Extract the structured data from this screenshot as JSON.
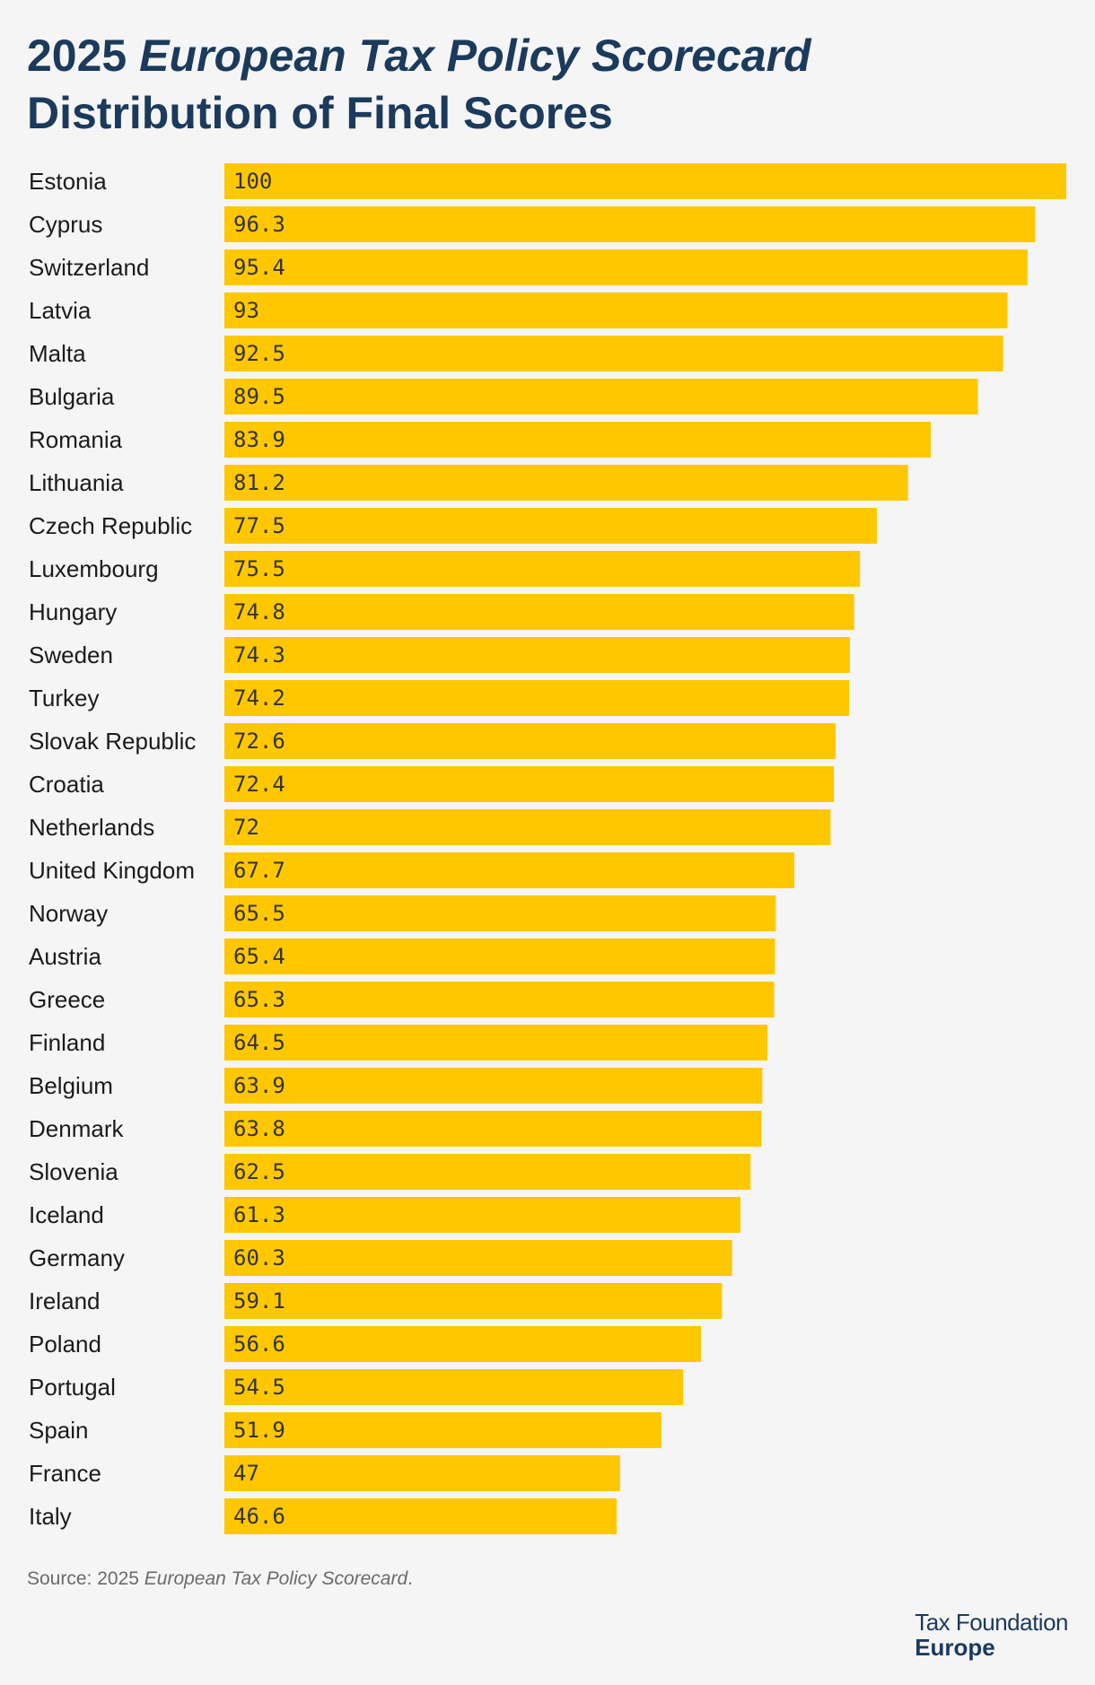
{
  "title": {
    "line1_prefix": "2025 ",
    "line1_emph": "European Tax Policy Scorecard",
    "line2": "Distribution of Final Scores"
  },
  "source": {
    "prefix": "Source: 2025 ",
    "emph": "European Tax Policy Scorecard",
    "suffix": "."
  },
  "logo": {
    "line1": "Tax Foundation",
    "line2": "Europe"
  },
  "colors": {
    "bar": "#ffc700",
    "title": "#1b3a5c",
    "background": "#f5f5f5"
  },
  "chart_data": {
    "type": "bar",
    "orientation": "horizontal",
    "categories": [
      "Estonia",
      "Cyprus",
      "Switzerland",
      "Latvia",
      "Malta",
      "Bulgaria",
      "Romania",
      "Lithuania",
      "Czech Republic",
      "Luxembourg",
      "Hungary",
      "Sweden",
      "Turkey",
      "Slovak Republic",
      "Croatia",
      "Netherlands",
      "United Kingdom",
      "Norway",
      "Austria",
      "Greece",
      "Finland",
      "Belgium",
      "Denmark",
      "Slovenia",
      "Iceland",
      "Germany",
      "Ireland",
      "Poland",
      "Portugal",
      "Spain",
      "France",
      "Italy"
    ],
    "values": [
      100,
      96.3,
      95.4,
      93,
      92.5,
      89.5,
      83.9,
      81.2,
      77.5,
      75.5,
      74.8,
      74.3,
      74.2,
      72.6,
      72.4,
      72,
      67.7,
      65.5,
      65.4,
      65.3,
      64.5,
      63.9,
      63.8,
      62.5,
      61.3,
      60.3,
      59.1,
      56.6,
      54.5,
      51.9,
      47,
      46.6
    ],
    "xlim": [
      0,
      100
    ],
    "grid": false,
    "data_labels": true
  }
}
